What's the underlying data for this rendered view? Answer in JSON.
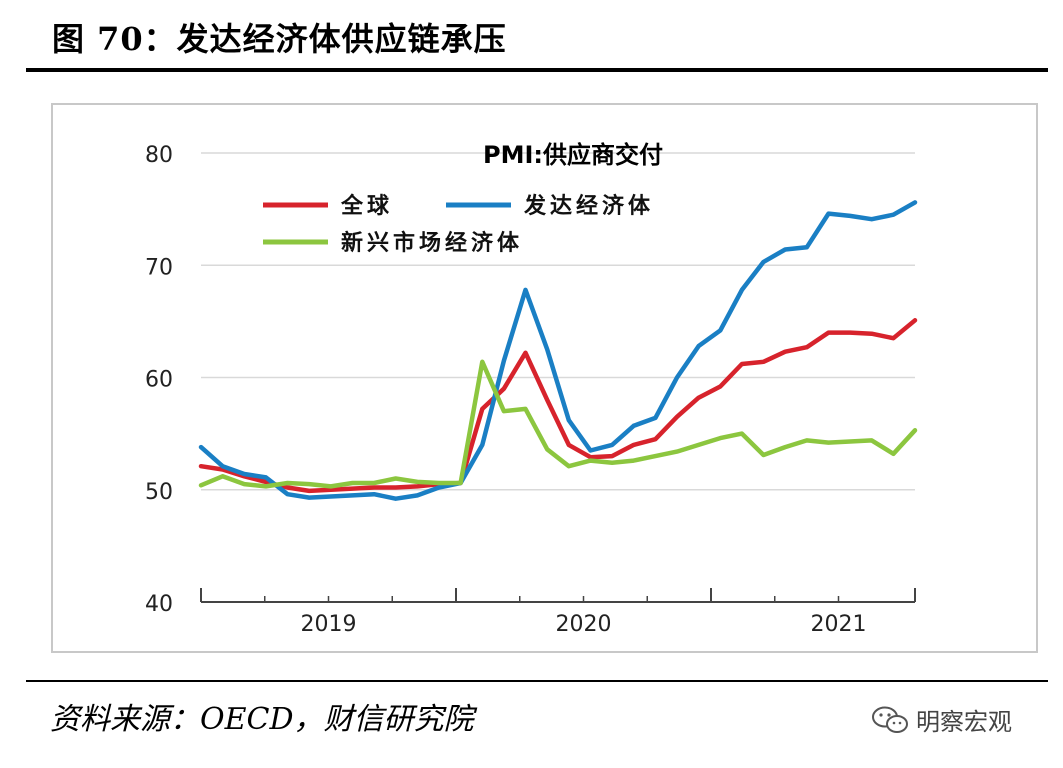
{
  "header": {
    "title": "图 70：发达经济体供应链承压"
  },
  "footer": {
    "source": "资料来源：OECD，财信研究院"
  },
  "watermark": {
    "text": "明察宏观",
    "icon": "wechat-icon"
  },
  "chart_data": {
    "type": "line",
    "title": "PMI:供应商交付",
    "xlabel": "",
    "ylabel": "",
    "ylim": [
      40,
      80
    ],
    "yticks": [
      40,
      50,
      60,
      70,
      80
    ],
    "xlim": [
      0,
      28
    ],
    "year_labels": [
      {
        "label": "2019",
        "center": 5
      },
      {
        "label": "2020",
        "center": 15
      },
      {
        "label": "2021",
        "center": 25
      }
    ],
    "x_ticks": [
      0,
      10,
      20,
      28
    ],
    "minor_x_ticks": [
      2.5,
      5,
      7.5,
      12.5,
      15,
      17.5,
      22.5,
      25
    ],
    "grid": true,
    "legend_position": "top-left",
    "series": [
      {
        "name": "全球",
        "color": "#d7232c",
        "values": [
          52.1,
          51.8,
          51.2,
          50.7,
          50.2,
          49.9,
          50.0,
          50.1,
          50.2,
          50.2,
          50.3,
          50.5,
          50.6,
          57.2,
          59.0,
          62.2,
          58.0,
          54.0,
          52.9,
          53.0,
          54.0,
          54.5,
          56.5,
          58.2,
          59.2,
          61.2,
          61.4,
          62.3,
          62.7,
          64.0,
          64.0,
          63.9,
          63.5,
          65.1
        ]
      },
      {
        "name": "发达经济体",
        "color": "#1a7fc4",
        "values": [
          53.8,
          52.1,
          51.4,
          51.1,
          49.6,
          49.3,
          49.4,
          49.5,
          49.6,
          49.2,
          49.5,
          50.2,
          50.6,
          54.0,
          61.5,
          67.8,
          62.5,
          56.2,
          53.5,
          54.0,
          55.7,
          56.4,
          60.0,
          62.8,
          64.2,
          67.8,
          70.3,
          71.4,
          71.6,
          74.6,
          74.4,
          74.1,
          74.5,
          75.6
        ]
      },
      {
        "name": "新兴市场经济体",
        "color": "#8cc63f",
        "values": [
          50.4,
          51.2,
          50.5,
          50.3,
          50.6,
          50.5,
          50.3,
          50.6,
          50.6,
          51.0,
          50.7,
          50.6,
          50.6,
          61.4,
          57.0,
          57.2,
          53.6,
          52.1,
          52.6,
          52.4,
          52.6,
          53.0,
          53.4,
          54.0,
          54.6,
          55.0,
          53.1,
          53.8,
          54.4,
          54.2,
          54.3,
          54.4,
          53.2,
          55.3
        ]
      }
    ]
  }
}
